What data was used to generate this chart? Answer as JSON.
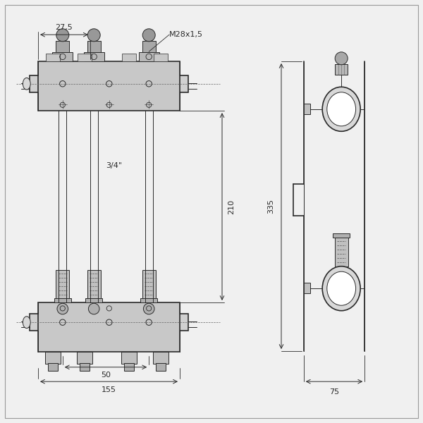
{
  "bg_color": "#f0f0f0",
  "line_color": "#2a2a2a",
  "dim_color": "#2a2a2a",
  "lw_main": 1.2,
  "lw_thin": 0.7,
  "lw_dim": 0.7
}
